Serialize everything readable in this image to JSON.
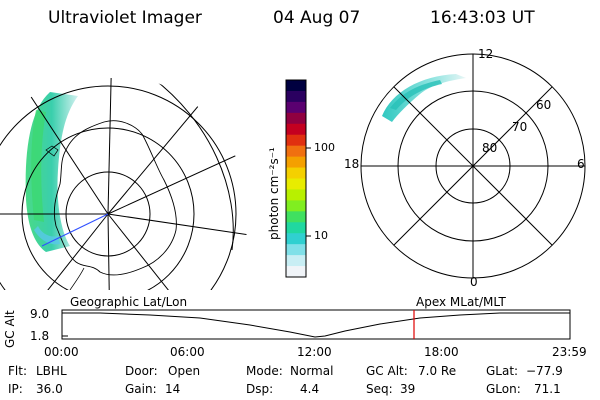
{
  "header": {
    "title": "Ultraviolet Imager",
    "date": "04 Aug 07",
    "time": "16:43:03 UT"
  },
  "colorbar": {
    "unit_label": "photon cm⁻²s⁻¹",
    "ticks": [
      "100",
      "10"
    ],
    "colors": [
      "#000040",
      "#2a0060",
      "#5a0070",
      "#900040",
      "#c40020",
      "#e03010",
      "#f07010",
      "#f4a000",
      "#f4d000",
      "#e8ec00",
      "#b8f000",
      "#80ee20",
      "#40e060",
      "#20d8a0",
      "#30d0d0",
      "#80e0e8",
      "#c8eef4",
      "#f0f4f8"
    ]
  },
  "geo_map": {
    "label": "Geographic Lat/Lon",
    "aurora_color": "#40d880"
  },
  "polar_map": {
    "label": "Apex MLat/MLT",
    "lat_labels": [
      "80",
      "70",
      "60"
    ],
    "mlt_labels": {
      "top": "12",
      "bottom": "0",
      "left": "18",
      "right": "6"
    }
  },
  "timeline": {
    "axis_label": "GC Alt",
    "y_ticks": [
      "9.0",
      "1.8"
    ],
    "x_ticks": [
      "00:00",
      "06:00",
      "12:00",
      "18:00",
      "23:59"
    ],
    "marker_color": "#e00000"
  },
  "status": {
    "flt_label": "Flt:",
    "flt": "LBHL",
    "ip_label": "IP:",
    "ip": "36.0",
    "door_label": "Door:",
    "door": "Open",
    "gain_label": "Gain:",
    "gain": "14",
    "mode_label": "Mode:",
    "mode": "Normal",
    "dsp_label": "Dsp:",
    "dsp": "4.4",
    "gcalt_label": "GC Alt:",
    "gcalt": "7.0 Re",
    "seq_label": "Seq:",
    "seq": "39",
    "glat_label": "GLat:",
    "glat": "−77.9",
    "glon_label": "GLon:",
    "glon": "71.1"
  }
}
